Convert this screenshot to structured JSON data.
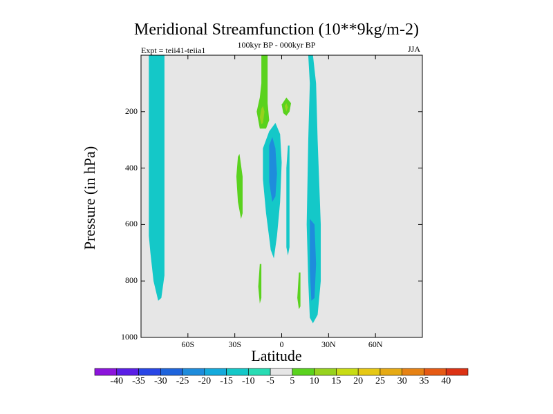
{
  "chart_data": {
    "type": "heatmap",
    "title": "Meridional Streamfunction (10**9kg/m-2)",
    "subtitle": "100kyr BP - 000kyr BP",
    "experiment": "Expt = teii41-teiia1",
    "season": "JJA",
    "xlabel": "Latitude",
    "ylabel": "Pressure (in hPa)",
    "x_ticks": [
      "60S",
      "30S",
      "0",
      "30N",
      "60N"
    ],
    "x_tick_values": [
      -60,
      -30,
      0,
      30,
      60
    ],
    "xlim": [
      -90,
      90
    ],
    "y_ticks": [
      "200",
      "400",
      "600",
      "800",
      "1000"
    ],
    "y_tick_values": [
      200,
      400,
      600,
      800,
      1000
    ],
    "ylim": [
      1000,
      0
    ],
    "background_color": "#e6e6e6",
    "colorbar": {
      "levels": [
        "-40",
        "-35",
        "-30",
        "-25",
        "-20",
        "-15",
        "-10",
        "-5",
        "5",
        "10",
        "15",
        "20",
        "25",
        "30",
        "35",
        "40"
      ],
      "colors": [
        "#8c14dc",
        "#5a1ee6",
        "#2846e6",
        "#1e64dc",
        "#1e8cdc",
        "#14aadc",
        "#14c8c8",
        "#28dcb4",
        "#e6e6e6",
        "#5ad21e",
        "#96d21e",
        "#c8dc14",
        "#e6c814",
        "#e6aa14",
        "#e68214",
        "#e65a14",
        "#dc3214"
      ]
    },
    "regions": [
      {
        "level": "-10",
        "lat": -80,
        "p_range": [
          0,
          870
        ],
        "note": "negative band near 80S"
      },
      {
        "level": "-10",
        "lat": -7,
        "p_range": [
          250,
          720
        ],
        "note": "negative cell near equator"
      },
      {
        "level": "-20",
        "lat": -5,
        "p_range": [
          310,
          520
        ],
        "note": "negative core near equator"
      },
      {
        "level": "-10",
        "lat": 20,
        "p_range": [
          0,
          950
        ],
        "note": "negative band near 20N"
      },
      {
        "level": "-20",
        "lat": 20,
        "p_range": [
          580,
          880
        ],
        "note": "negative core near 20N"
      },
      {
        "level": "5",
        "lat": -12,
        "p_range": [
          0,
          260
        ],
        "note": "positive near 12S upper levels"
      },
      {
        "level": "10",
        "lat": -13,
        "p_range": [
          180,
          250
        ],
        "note": "positive core near 13S"
      },
      {
        "level": "5",
        "lat": 3,
        "p_range": [
          150,
          220
        ],
        "note": "positive near 3N"
      },
      {
        "level": "10",
        "lat": 3,
        "p_range": [
          170,
          200
        ],
        "note": "positive core near 3N"
      },
      {
        "level": "5",
        "lat": -28,
        "p_range": [
          380,
          570
        ],
        "note": "positive near 28S"
      },
      {
        "level": "5",
        "lat": -14,
        "p_range": [
          740,
          880
        ],
        "note": "positive near 14S low levels"
      },
      {
        "level": "5",
        "lat": 12,
        "p_range": [
          770,
          900
        ],
        "note": "positive near 12N low levels"
      }
    ]
  }
}
